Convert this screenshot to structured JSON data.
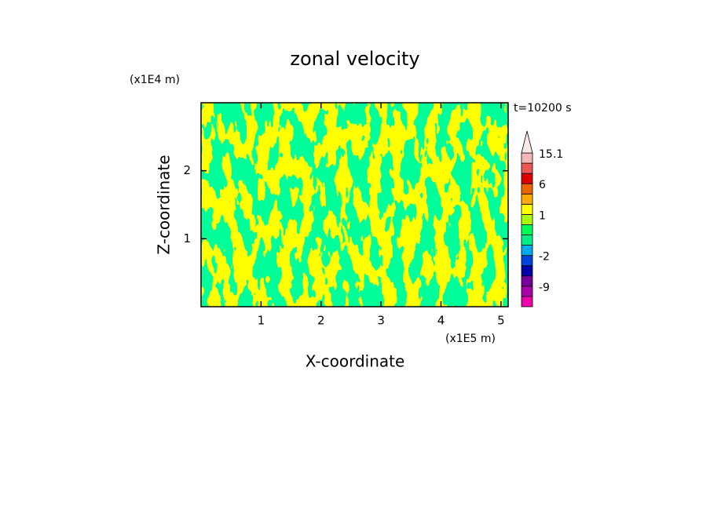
{
  "chart_data": {
    "type": "contour",
    "title": "zonal velocity",
    "x_label": "X-coordinate",
    "y_label": "Z-coordinate",
    "x_unit": "(x1E5 m)",
    "y_unit": "(x1E4 m)",
    "annotation": "t=10200 s",
    "xlim": [
      0,
      5.12
    ],
    "ylim": [
      0,
      3
    ],
    "xticks": [
      1,
      2,
      3,
      4,
      5
    ],
    "yticks": [
      1,
      2
    ],
    "colorbar": {
      "levels": [
        -15,
        -12,
        -9,
        -6,
        -4,
        -2,
        -1,
        0,
        0.5,
        1,
        2,
        4,
        6,
        9,
        12,
        15.1
      ],
      "colors": [
        "#ee00aa",
        "#aa00aa",
        "#770099",
        "#0000aa",
        "#0044dd",
        "#00aaee",
        "#00ee88",
        "#00ff55",
        "#aaff00",
        "#ffff00",
        "#ffaa00",
        "#ee6600",
        "#dd0000",
        "#ee5555",
        "#f4b6b6"
      ],
      "over_color": "#fde8e8",
      "ticks": [
        15.1,
        6,
        1,
        -2,
        -9
      ]
    }
  }
}
